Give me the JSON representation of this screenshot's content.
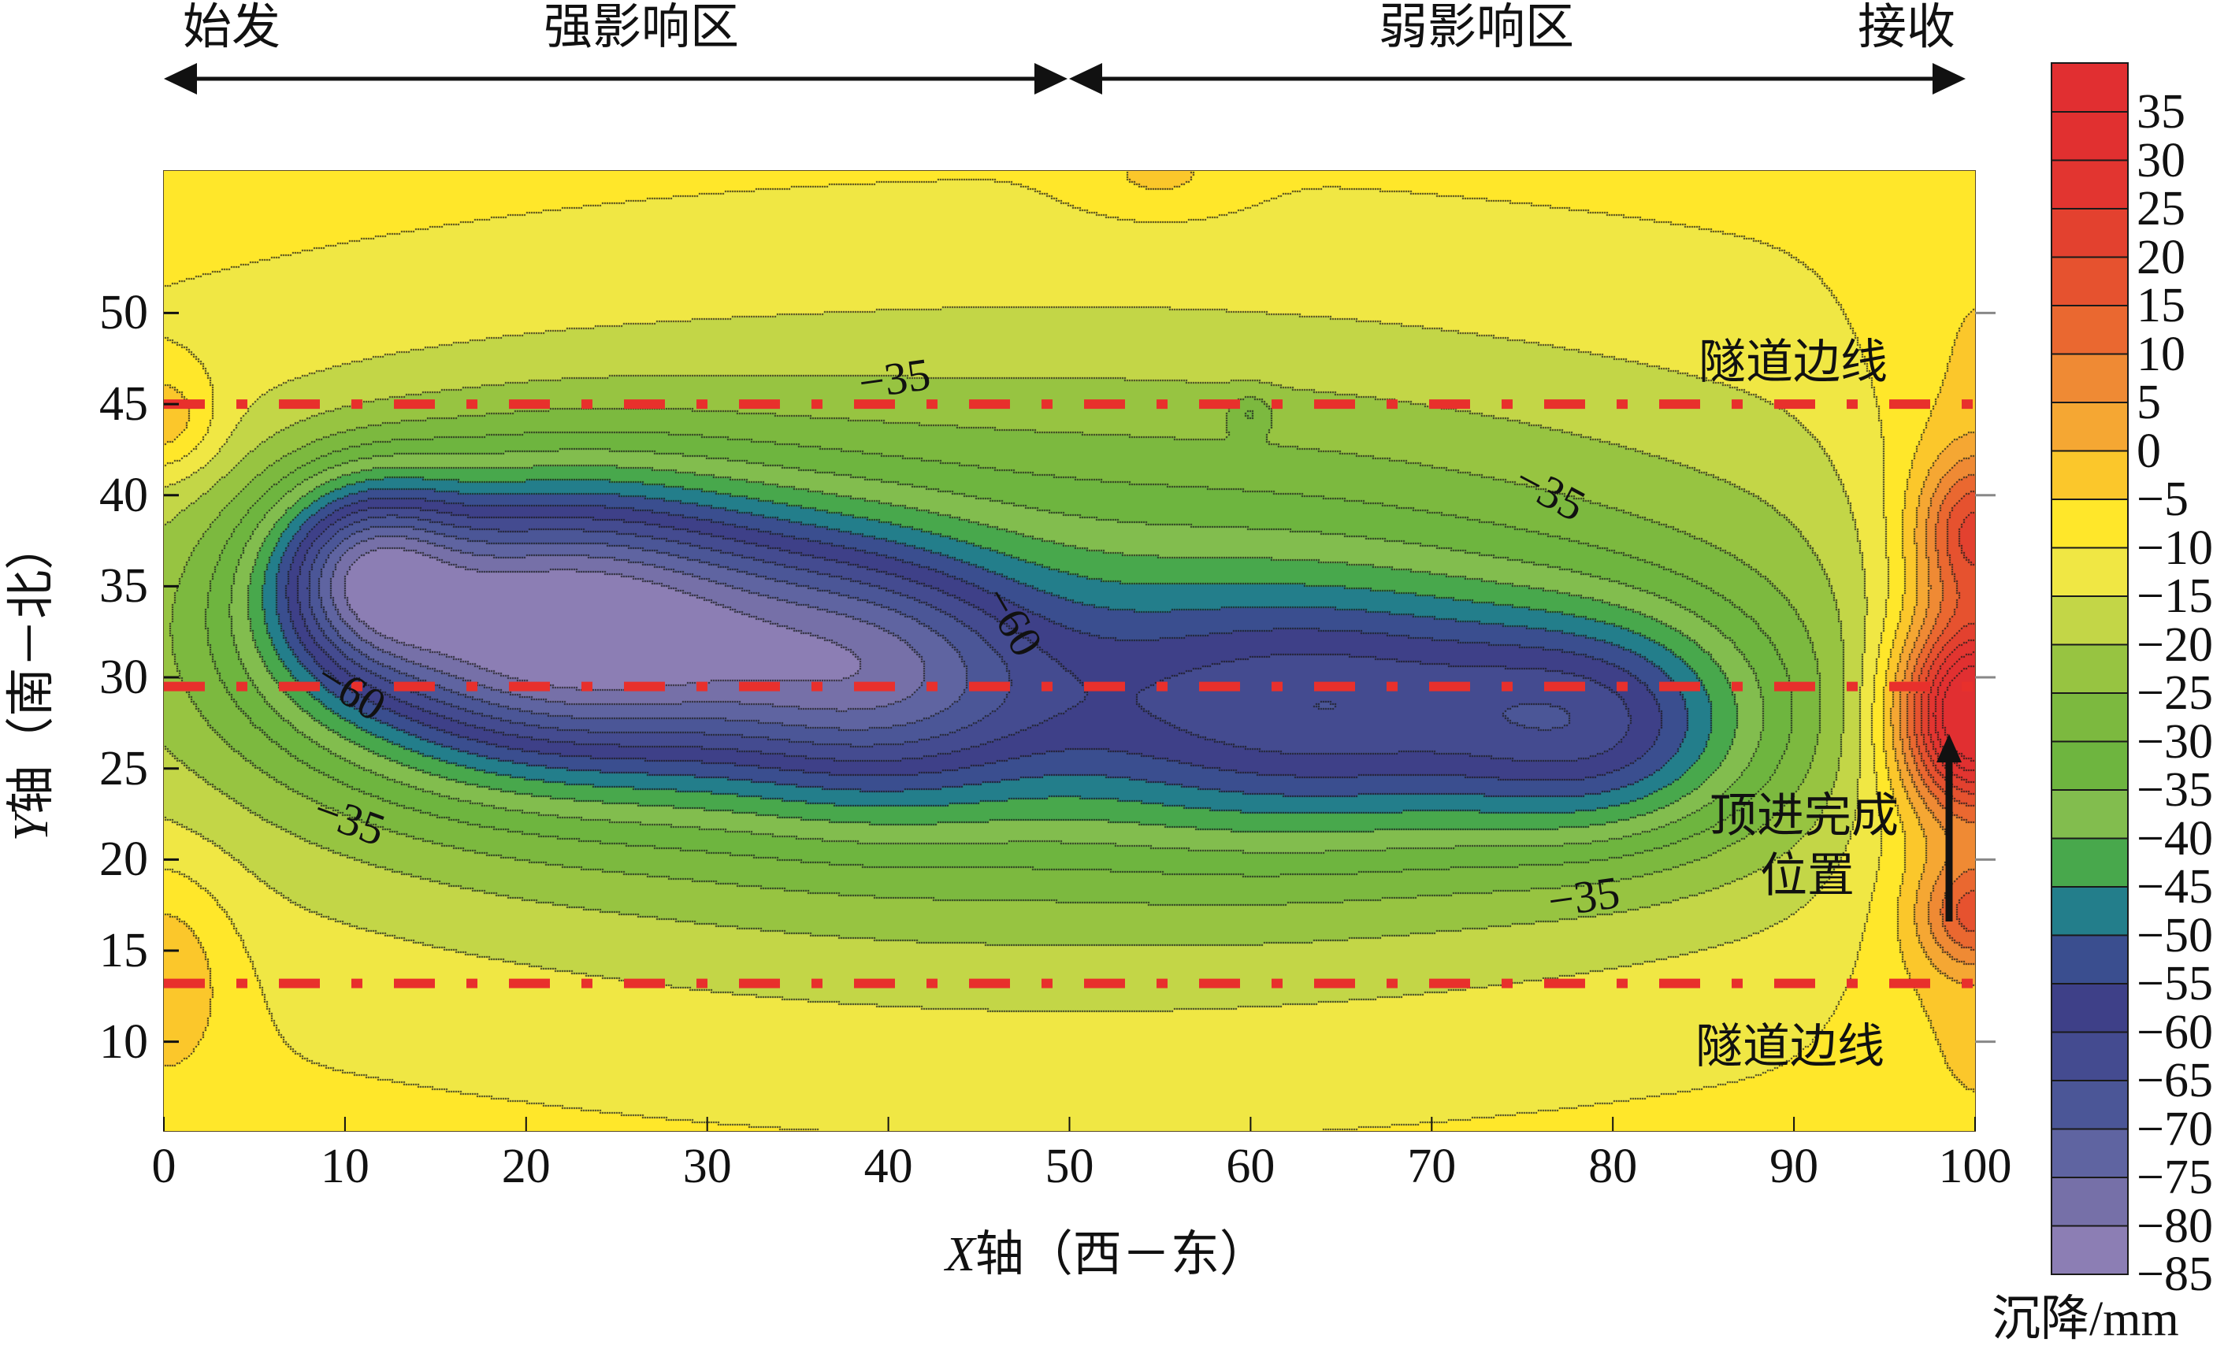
{
  "chart_data": {
    "type": "contour",
    "title": "",
    "xlabel_var": "X",
    "xlabel_rest": "轴（西－东）",
    "ylabel_var": "Y",
    "ylabel_rest": "轴（南－北）",
    "xlim": [
      0,
      100
    ],
    "ylim": [
      5.1,
      57.8
    ],
    "xticks": [
      0,
      10,
      20,
      30,
      40,
      50,
      60,
      70,
      80,
      90,
      100
    ],
    "yticks": [
      10,
      15,
      20,
      25,
      30,
      35,
      40,
      45,
      50
    ],
    "right_ticks": [
      10,
      20,
      30,
      40,
      50
    ],
    "colorbar": {
      "label": "沉降/mm",
      "levels": [
        35,
        30,
        25,
        20,
        15,
        10,
        5,
        0,
        -5,
        -10,
        -15,
        -20,
        -25,
        -30,
        -35,
        -40,
        -45,
        -50,
        -55,
        -60,
        -65,
        -70,
        -75,
        -80,
        -85
      ],
      "colors": [
        "#e12f31",
        "#e13030",
        "#e23530",
        "#e3412f",
        "#e6522f",
        "#ea6830",
        "#ef8a34",
        "#f5a733",
        "#fbc72b",
        "#ffe72a",
        "#f0e744",
        "#c3d647",
        "#97c441",
        "#7cb93f",
        "#6eb53f",
        "#82bd4e",
        "#48a84c",
        "#237e8b",
        "#3a4e8f",
        "#3e4088",
        "#444b90",
        "#4b5697",
        "#5f64a1",
        "#7670a8",
        "#8c7eb4"
      ]
    },
    "value_range_mm": [
      -85,
      35
    ],
    "reference_lines_y": [
      45,
      29.5,
      13.2
    ],
    "reference_line_color": "#e8302c",
    "contour_labels": [
      "−35",
      "−60",
      "−60",
      "−35",
      "−35",
      "−35"
    ]
  },
  "annotations": {
    "zone_start": "始发",
    "zone_strong": "强影响区",
    "zone_weak": "弱影响区",
    "zone_end": "接收",
    "tunnel_edge_top": "隧道边线",
    "tunnel_edge_bottom": "隧道边线",
    "jacking_done_line1": "顶进完成",
    "jacking_done_line2": "位置"
  }
}
